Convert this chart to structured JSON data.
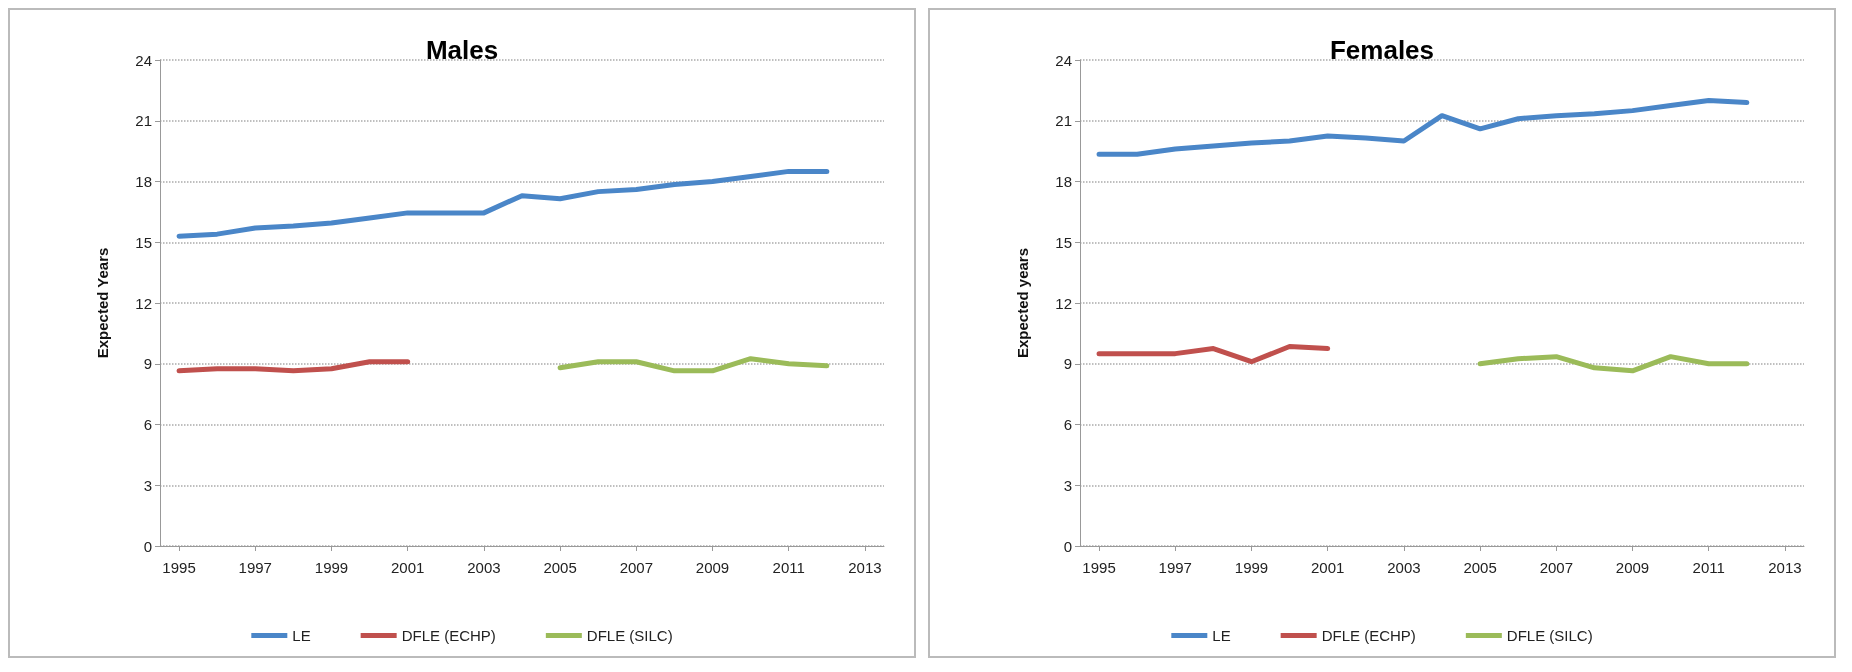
{
  "chart_data": [
    {
      "type": "line",
      "title": "Males",
      "ylabel": "Expected Years",
      "xlim": [
        1994.5,
        2013.5
      ],
      "xticks": [
        1995,
        1997,
        1999,
        2001,
        2003,
        2005,
        2007,
        2009,
        2011,
        2013
      ],
      "ylim": [
        0,
        24
      ],
      "yticks": [
        0,
        3,
        6,
        9,
        12,
        15,
        18,
        21,
        24
      ],
      "grid": "y",
      "legend": "bottom",
      "series": [
        {
          "name": "LE",
          "color": "#4a86c8",
          "x": [
            1995,
            1996,
            1997,
            1998,
            1999,
            2000,
            2001,
            2002,
            2003,
            2004,
            2005,
            2006,
            2007,
            2008,
            2009,
            2010,
            2011,
            2012
          ],
          "values": [
            15.3,
            15.4,
            15.7,
            15.8,
            15.95,
            16.2,
            16.45,
            16.45,
            16.45,
            17.3,
            17.15,
            17.5,
            17.6,
            17.85,
            18.0,
            18.25,
            18.5,
            18.5
          ]
        },
        {
          "name": "DFLE (ECHP)",
          "color": "#c0504d",
          "x": [
            1995,
            1996,
            1997,
            1998,
            1999,
            2000,
            2001
          ],
          "values": [
            8.65,
            8.75,
            8.75,
            8.65,
            8.75,
            9.1,
            9.1
          ]
        },
        {
          "name": "DFLE (SILC)",
          "color": "#9bbb59",
          "x": [
            2005,
            2006,
            2007,
            2008,
            2009,
            2010,
            2011,
            2012
          ],
          "values": [
            8.8,
            9.1,
            9.1,
            8.65,
            8.65,
            9.25,
            9.0,
            8.9
          ]
        }
      ]
    },
    {
      "type": "line",
      "title": "Females",
      "ylabel": "Expected years",
      "xlim": [
        1994.5,
        2013.5
      ],
      "xticks": [
        1995,
        1997,
        1999,
        2001,
        2003,
        2005,
        2007,
        2009,
        2011,
        2013
      ],
      "ylim": [
        0,
        24
      ],
      "yticks": [
        0,
        3,
        6,
        9,
        12,
        15,
        18,
        21,
        24
      ],
      "grid": "y",
      "legend": "bottom",
      "series": [
        {
          "name": "LE",
          "color": "#4a86c8",
          "x": [
            1995,
            1996,
            1997,
            1998,
            1999,
            2000,
            2001,
            2002,
            2003,
            2004,
            2005,
            2006,
            2007,
            2008,
            2009,
            2010,
            2011,
            2012
          ],
          "values": [
            19.35,
            19.35,
            19.6,
            19.75,
            19.9,
            20.0,
            20.25,
            20.15,
            20.0,
            21.25,
            20.6,
            21.1,
            21.25,
            21.35,
            21.5,
            21.75,
            22.0,
            21.9
          ]
        },
        {
          "name": "DFLE (ECHP)",
          "color": "#c0504d",
          "x": [
            1995,
            1996,
            1997,
            1998,
            1999,
            2000,
            2001
          ],
          "values": [
            9.5,
            9.5,
            9.5,
            9.75,
            9.1,
            9.85,
            9.75
          ]
        },
        {
          "name": "DFLE (SILC)",
          "color": "#9bbb59",
          "x": [
            2005,
            2006,
            2007,
            2008,
            2009,
            2010,
            2011,
            2012
          ],
          "values": [
            9.0,
            9.25,
            9.35,
            8.8,
            8.65,
            9.35,
            9.0,
            9.0
          ]
        }
      ]
    }
  ]
}
